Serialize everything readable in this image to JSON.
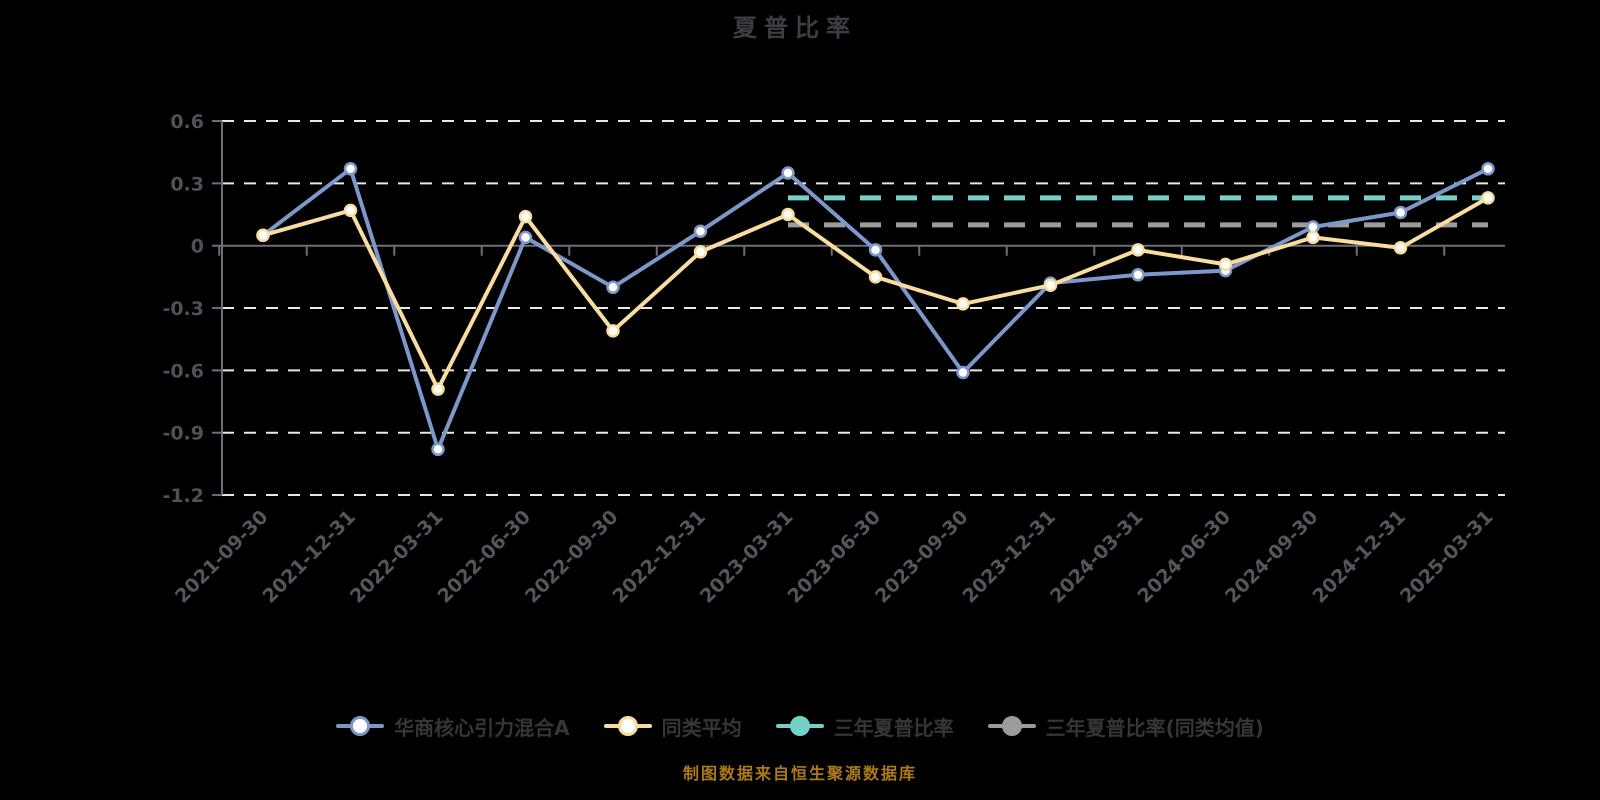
{
  "title": "夏普比率",
  "footer": "制图数据来自恒生聚源数据库",
  "legend": {
    "items": [
      {
        "label": "华商核心引力混合A",
        "color": "#7d97cb",
        "marker": "hollow"
      },
      {
        "label": "同类平均",
        "color": "#f9dda0",
        "marker": "hollow"
      },
      {
        "label": "三年夏普比率",
        "color": "#74d1c9",
        "marker": "filled"
      },
      {
        "label": "三年夏普比率(同类均值)",
        "color": "#9c9c9c",
        "marker": "filled"
      }
    ]
  },
  "chart_data": {
    "type": "line",
    "title": "夏普比率",
    "categories": [
      "2021-09-30",
      "2021-12-31",
      "2022-03-31",
      "2022-06-30",
      "2022-09-30",
      "2022-12-31",
      "2023-03-31",
      "2023-06-30",
      "2023-09-30",
      "2023-12-31",
      "2024-03-31",
      "2024-06-30",
      "2024-09-30",
      "2024-12-31",
      "2025-03-31"
    ],
    "series": [
      {
        "name": "华商核心引力混合A",
        "type": "line-markers",
        "color": "#7d97cb",
        "values": [
          0.05,
          0.37,
          -0.98,
          0.04,
          -0.2,
          0.07,
          0.35,
          -0.02,
          -0.61,
          -0.18,
          -0.14,
          -0.12,
          0.09,
          0.16,
          0.37
        ]
      },
      {
        "name": "同类平均",
        "type": "line-markers",
        "color": "#f9dda0",
        "values": [
          0.05,
          0.17,
          -0.69,
          0.14,
          -0.41,
          -0.03,
          0.15,
          -0.15,
          -0.28,
          -0.19,
          -0.02,
          -0.09,
          0.04,
          -0.01,
          0.23
        ]
      },
      {
        "name": "三年夏普比率",
        "type": "constant-dashed",
        "color": "#74d1c9",
        "constant": 0.23,
        "from": "2023-03-31",
        "to": "2025-03-31"
      },
      {
        "name": "三年夏普比率(同类均值)",
        "type": "constant-dashed",
        "color": "#9c9c9c",
        "constant": 0.1,
        "from": "2023-03-31",
        "to": "2025-03-31"
      }
    ],
    "ylim": [
      -1.2,
      0.6
    ],
    "yticks": [
      "0.6",
      "0.3",
      "0",
      "-0.3",
      "-0.6",
      "-0.9",
      "-1.2"
    ],
    "grid": "horizontal-dashed",
    "legend_position": "bottom"
  },
  "colors": {
    "background": "#000000",
    "grid": "#e8e8e8",
    "axis": "#6e6e76",
    "blue_series": "#7d97cb",
    "yellow_series": "#f9dda0",
    "teal_line": "#74d1c9",
    "gray_line": "#9c9c9c",
    "footer_text": "#ad7b16"
  }
}
